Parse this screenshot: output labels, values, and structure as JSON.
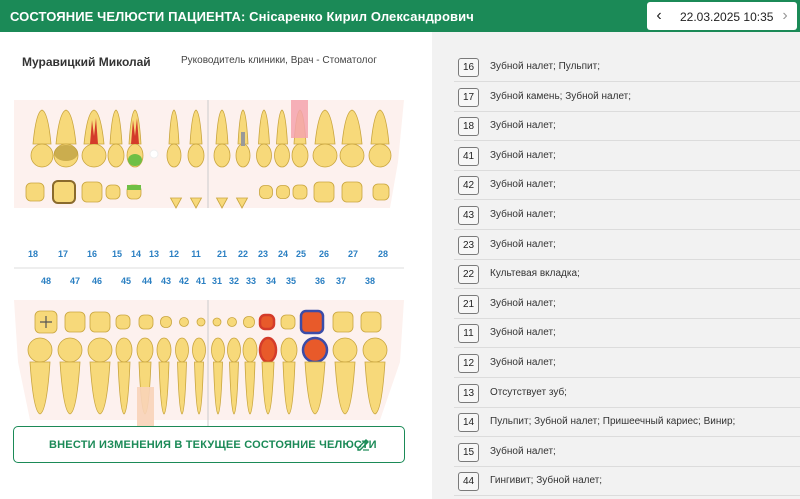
{
  "header": {
    "title": "СОСТОЯНИЕ ЧЕЛЮСТИ ПАЦИЕНТА: Сніcаренко Кирил Олександрович",
    "date": "22.03.2025 10:35",
    "prev_icon": "chevron-left-icon",
    "next_icon": "chevron-right-icon"
  },
  "doctor": {
    "name": "Муравицкий Миколай",
    "role": "Руководитель клиники, Врач - Стоматолог"
  },
  "upper_numbers": [
    "18",
    "17",
    "16",
    "15",
    "14",
    "13",
    "12",
    "11",
    "21",
    "22",
    "23",
    "24",
    "25",
    "26",
    "27",
    "28"
  ],
  "lower_numbers": [
    "48",
    "47",
    "46",
    "45",
    "44",
    "43",
    "42",
    "41",
    "31",
    "32",
    "33",
    "34",
    "35",
    "36",
    "37",
    "38"
  ],
  "colors": {
    "brand": "#1b8a57",
    "tooth_fill": "#f7d97a",
    "tooth_stroke": "#c9a53e",
    "caries_red": "#d43b2a",
    "marker_blue": "#3b4ca8",
    "gum": "#fbe9e7",
    "tooth_number": "#2a7fc2"
  },
  "apply_button": {
    "label": "ВНЕСТИ ИЗМЕНЕНИЯ В ТЕКУЩЕЕ СОСТОЯНИЕ ЧЕЛЮСТИ",
    "icon": "edit-icon"
  },
  "conditions": [
    {
      "tooth": "16",
      "text": "Зубной налет; Пульпит;"
    },
    {
      "tooth": "17",
      "text": "Зубной камень; Зубной налет;"
    },
    {
      "tooth": "18",
      "text": "Зубной налет;"
    },
    {
      "tooth": "41",
      "text": "Зубной налет;"
    },
    {
      "tooth": "42",
      "text": "Зубной налет;"
    },
    {
      "tooth": "43",
      "text": "Зубной налет;"
    },
    {
      "tooth": "23",
      "text": "Зубной налет;"
    },
    {
      "tooth": "22",
      "text": "Культевая вкладка;"
    },
    {
      "tooth": "21",
      "text": "Зубной налет;"
    },
    {
      "tooth": "11",
      "text": "Зубной налет;"
    },
    {
      "tooth": "12",
      "text": "Зубной налет;"
    },
    {
      "tooth": "13",
      "text": "Отсутствует зуб;"
    },
    {
      "tooth": "14",
      "text": "Пульпит; Зубной налет; Пришеечный кариес; Винир;"
    },
    {
      "tooth": "15",
      "text": "Зубной налет;"
    },
    {
      "tooth": "44",
      "text": "Гингивит; Зубной налет;"
    }
  ]
}
